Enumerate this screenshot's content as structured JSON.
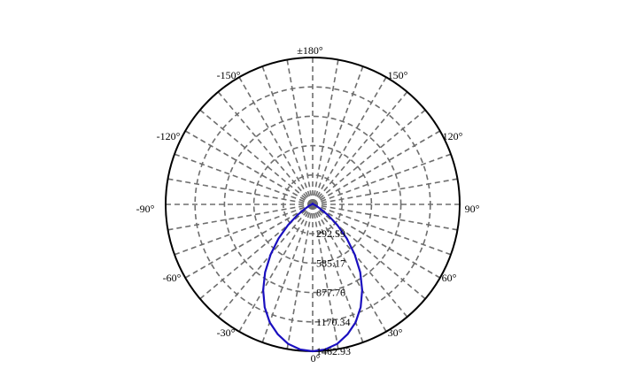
{
  "chart_data": {
    "type": "line",
    "subtype": "polar",
    "title": "",
    "angle_unit": "°",
    "zero_direction": "bottom",
    "angle_labels": [
      {
        "angle": 0,
        "text": "0°"
      },
      {
        "angle": 30,
        "text": "30°"
      },
      {
        "angle": 60,
        "text": "60°"
      },
      {
        "angle": 90,
        "text": "90°"
      },
      {
        "angle": 120,
        "text": "120°"
      },
      {
        "angle": 150,
        "text": "150°"
      },
      {
        "angle": 180,
        "text": "±180°"
      },
      {
        "angle": -150,
        "text": "-150°"
      },
      {
        "angle": -120,
        "text": "-120°"
      },
      {
        "angle": -90,
        "text": "-90°"
      },
      {
        "angle": -60,
        "text": "-60°"
      },
      {
        "angle": -30,
        "text": "-30°"
      }
    ],
    "radial_max": 1462.93,
    "radial_ticks": [
      {
        "value": 292.59,
        "text": "292.59"
      },
      {
        "value": 585.17,
        "text": "585.17"
      },
      {
        "value": 877.76,
        "text": "877.76"
      },
      {
        "value": 1170.34,
        "text": "1170.34"
      },
      {
        "value": 1462.93,
        "text": "1462.93"
      }
    ],
    "spoke_step_deg": 10,
    "grid": true,
    "colors": {
      "curve": "#1a0fbf",
      "grid": "#6e6e6e",
      "outer_ring": "#000000"
    },
    "series": [
      {
        "angles": [
          0,
          5,
          10,
          15,
          20,
          25,
          30,
          35,
          40,
          45,
          50,
          55,
          60,
          70,
          80,
          90,
          180,
          -90,
          -80,
          -70,
          -60,
          -55,
          -50,
          -45,
          -40,
          -35,
          -30,
          -25,
          -20,
          -15,
          -10,
          -5
        ],
        "values": [
          1462.93,
          1450,
          1410,
          1340,
          1250,
          1130,
          985,
          825,
          650,
          480,
          320,
          185,
          90,
          35,
          15,
          8,
          8,
          8,
          15,
          35,
          90,
          185,
          320,
          480,
          650,
          825,
          985,
          1130,
          1250,
          1340,
          1410,
          1450
        ]
      }
    ]
  }
}
